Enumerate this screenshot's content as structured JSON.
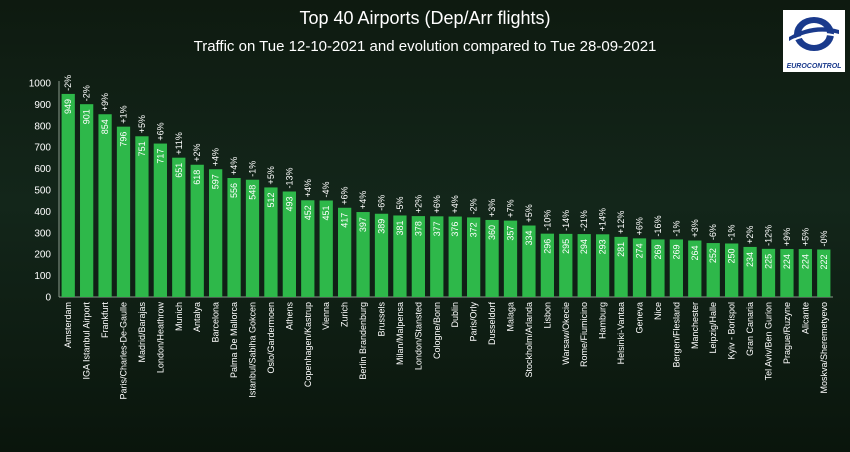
{
  "title": "Top 40 Airports (Dep/Arr flights)",
  "subtitle": "Traffic on Tue 12-10-2021 and evolution compared to Tue 28-09-2021",
  "logo": {
    "text": "EUROCONTROL",
    "icon": "eurocontrol-logo-icon"
  },
  "colors": {
    "bar": "#2eb84a",
    "text": "#ffffff",
    "grid": "#3a4a3c"
  },
  "chart_data": {
    "type": "bar",
    "ylim": [
      0,
      1000
    ],
    "yticks": [
      0,
      100,
      200,
      300,
      400,
      500,
      600,
      700,
      800,
      900,
      1000
    ],
    "grid": false,
    "categories": [
      "Amsterdam",
      "IGA Istanbul Airport",
      "Frankfurt",
      "Paris/Charles-De-Gaulle",
      "Madrid/Barajas",
      "London/Heathrow",
      "Munich",
      "Antalya",
      "Barcelona",
      "Palma De Mallorca",
      "Istanbul/Sabiha Gokcen",
      "Oslo/Gardermoen",
      "Athens",
      "Copenhagen/Kastrup",
      "Vienna",
      "Zurich",
      "Berlin Brandenburg",
      "Brussels",
      "Milan/Malpensa",
      "London/Stansted",
      "Cologne/Bonn",
      "Dublin",
      "Paris/Orly",
      "Dusseldorf",
      "Malaga",
      "Stockholm/Arlanda",
      "Lisbon",
      "Warsaw/Okecie",
      "Rome/Fiumicino",
      "Hamburg",
      "Helsinki-Vantaa",
      "Geneva",
      "Nice",
      "Bergen/Flesland",
      "Manchester",
      "Leipzig/Halle",
      "Kyiv - Borispol",
      "Gran Canaria",
      "Tel Aviv/Ben Gurion",
      "Prague/Ruzyne",
      "Alicante",
      "Moskva/Sheremetyevo"
    ],
    "values": [
      949,
      901,
      854,
      796,
      751,
      717,
      651,
      618,
      597,
      556,
      548,
      512,
      493,
      452,
      451,
      417,
      397,
      389,
      381,
      378,
      377,
      376,
      372,
      360,
      357,
      334,
      296,
      295,
      294,
      293,
      281,
      274,
      269,
      269,
      264,
      252,
      250,
      234,
      225,
      224,
      224,
      222
    ],
    "value_labels": [
      "949",
      "901",
      "854",
      "796",
      "751",
      "717",
      "651",
      "618",
      "597",
      "556",
      "548",
      "512",
      "493",
      "452",
      "451",
      "417",
      "397",
      "389",
      "381",
      "378",
      "377",
      "376",
      "372",
      "360",
      "357",
      "334",
      "296",
      "295",
      "294",
      "293",
      "281",
      "274",
      "269",
      "269",
      "264",
      "252",
      "250",
      "234",
      "225",
      "224",
      "224",
      "222"
    ],
    "evolution_labels": [
      "-2%",
      "-2%",
      "+9%",
      "+1%",
      "+5%",
      "+6%",
      "+11%",
      "+2%",
      "+4%",
      "+4%",
      "-1%",
      "+5%",
      "-13%",
      "+4%",
      "-4%",
      "+6%",
      "+4%",
      "-6%",
      "-5%",
      "+2%",
      "+6%",
      "+4%",
      "-2%",
      "+3%",
      "+7%",
      "+5%",
      "-10%",
      "-14%",
      "-21%",
      "+14%",
      "+12%",
      "+6%",
      "-16%",
      "-1%",
      "+3%",
      "-6%",
      "-1%",
      "+2%",
      "-12%",
      "+9%",
      "+5%",
      "-0%"
    ]
  }
}
